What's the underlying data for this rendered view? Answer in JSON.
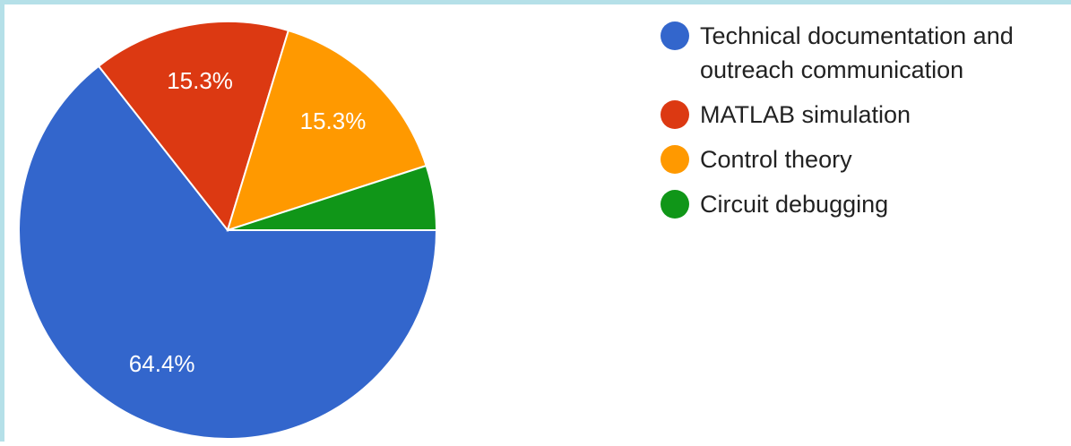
{
  "chart_data": {
    "type": "pie",
    "categories": [
      "Technical documentation and outreach communication",
      "MATLAB simulation",
      "Control theory",
      "Circuit debugging"
    ],
    "values": [
      64.4,
      15.3,
      15.3,
      5.0
    ],
    "value_labels": [
      "64.4%",
      "15.3%",
      "15.3%",
      null
    ],
    "colors": [
      "#3366cc",
      "#dc3912",
      "#ff9900",
      "#109618"
    ],
    "legend": "right"
  }
}
